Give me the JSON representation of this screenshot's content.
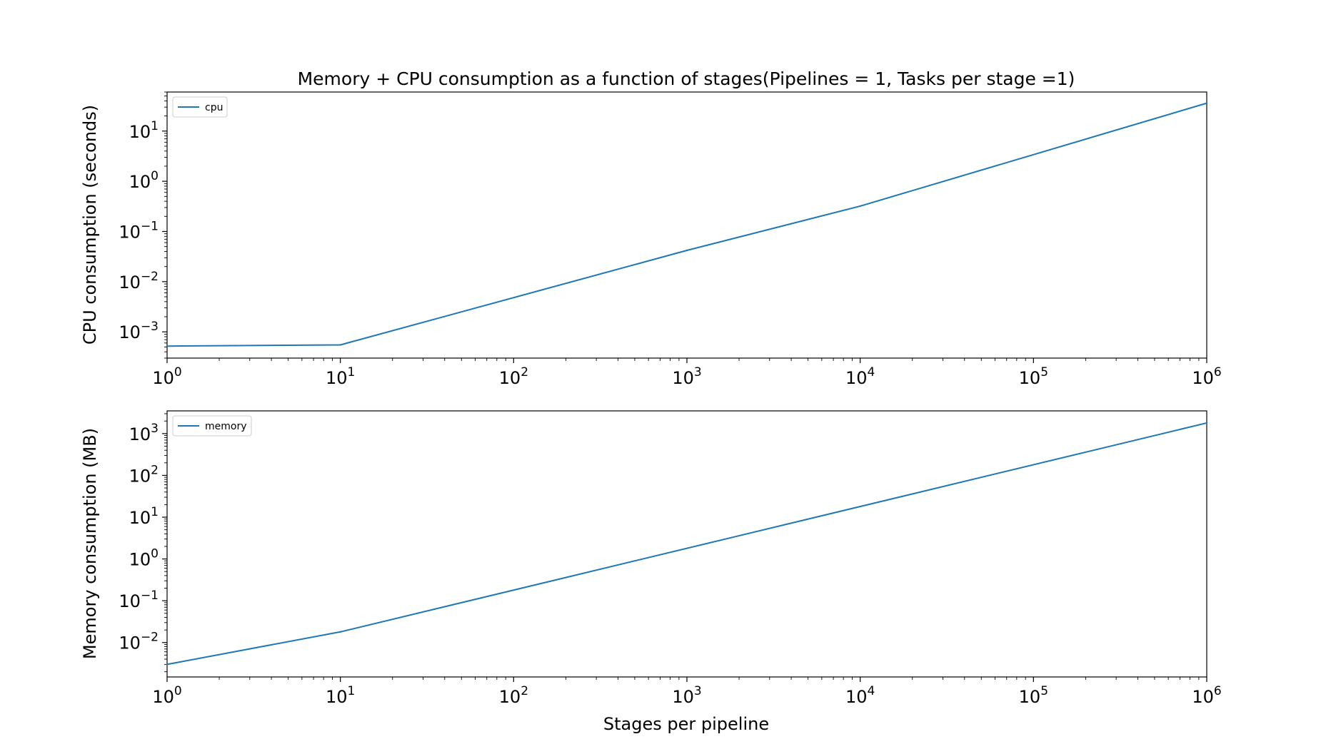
{
  "figure": {
    "title": "Memory + CPU consumption as a function of stages(Pipelines = 1, Tasks per stage =1)",
    "xlabel": "Stages per pipeline"
  },
  "colors": {
    "series": "#1f77b4",
    "axes": "#000000",
    "background": "#ffffff"
  },
  "chart_data": [
    {
      "type": "line",
      "title": "Memory + CPU consumption as a function of stages(Pipelines = 1, Tasks per stage =1)",
      "xlabel": "",
      "ylabel": "CPU consumption (seconds)",
      "xscale": "log",
      "yscale": "log",
      "xlim": [
        1,
        1000000
      ],
      "ylim": [
        0.0003,
        60
      ],
      "xticks": [
        1,
        10,
        100,
        1000,
        10000,
        100000,
        1000000
      ],
      "xtick_labels": [
        {
          "base": "10",
          "exp": "0"
        },
        {
          "base": "10",
          "exp": "1"
        },
        {
          "base": "10",
          "exp": "2"
        },
        {
          "base": "10",
          "exp": "3"
        },
        {
          "base": "10",
          "exp": "4"
        },
        {
          "base": "10",
          "exp": "5"
        },
        {
          "base": "10",
          "exp": "6"
        }
      ],
      "yticks": [
        0.001,
        0.01,
        0.1,
        1,
        10
      ],
      "ytick_labels": [
        {
          "base": "10",
          "exp": "−3"
        },
        {
          "base": "10",
          "exp": "−2"
        },
        {
          "base": "10",
          "exp": "−1"
        },
        {
          "base": "10",
          "exp": "0"
        },
        {
          "base": "10",
          "exp": "1"
        }
      ],
      "legend": {
        "placement": "upper-left"
      },
      "grid": false,
      "series": [
        {
          "name": "cpu",
          "x": [
            1,
            10,
            1000,
            10000,
            1000000
          ],
          "y": [
            0.00052,
            0.00055,
            0.042,
            0.32,
            36
          ]
        }
      ]
    },
    {
      "type": "line",
      "title": "",
      "xlabel": "Stages per pipeline",
      "ylabel": "Memory consumption (MB)",
      "xscale": "log",
      "yscale": "log",
      "xlim": [
        1,
        1000000
      ],
      "ylim": [
        0.0015,
        3500
      ],
      "xticks": [
        1,
        10,
        100,
        1000,
        10000,
        100000,
        1000000
      ],
      "xtick_labels": [
        {
          "base": "10",
          "exp": "0"
        },
        {
          "base": "10",
          "exp": "1"
        },
        {
          "base": "10",
          "exp": "2"
        },
        {
          "base": "10",
          "exp": "3"
        },
        {
          "base": "10",
          "exp": "4"
        },
        {
          "base": "10",
          "exp": "5"
        },
        {
          "base": "10",
          "exp": "6"
        }
      ],
      "yticks": [
        0.01,
        0.1,
        1,
        10,
        100,
        1000
      ],
      "ytick_labels": [
        {
          "base": "10",
          "exp": "−2"
        },
        {
          "base": "10",
          "exp": "−1"
        },
        {
          "base": "10",
          "exp": "0"
        },
        {
          "base": "10",
          "exp": "1"
        },
        {
          "base": "10",
          "exp": "2"
        },
        {
          "base": "10",
          "exp": "3"
        }
      ],
      "legend": {
        "placement": "upper-left"
      },
      "grid": false,
      "series": [
        {
          "name": "memory",
          "x": [
            1,
            10,
            1000000
          ],
          "y": [
            0.003,
            0.018,
            1800
          ]
        }
      ]
    }
  ]
}
